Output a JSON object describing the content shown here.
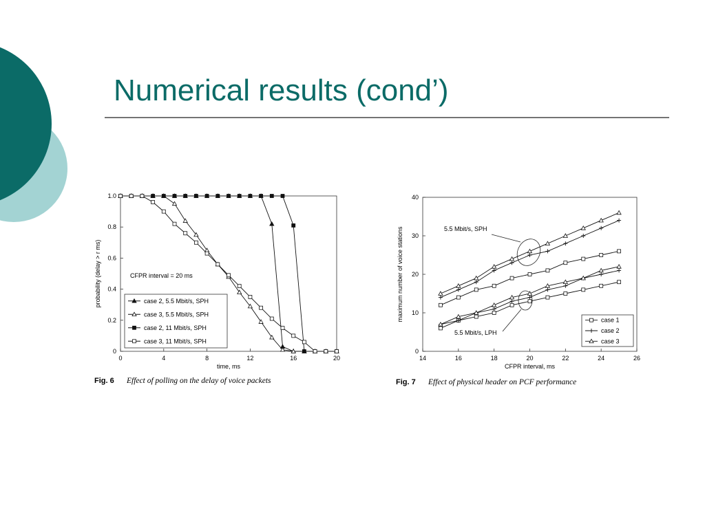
{
  "title": "Numerical results (cond’)",
  "chart_data": [
    {
      "type": "line",
      "xlabel": "time, ms",
      "ylabel": "probability (delay > r ms)",
      "annotation": "CFPR interval = 20 ms",
      "caption": {
        "label": "Fig. 6",
        "text": "Effect of polling on the delay of voice packets"
      },
      "x": [
        0,
        1,
        2,
        3,
        4,
        5,
        6,
        7,
        8,
        9,
        10,
        11,
        12,
        13,
        14,
        15,
        16,
        17,
        18,
        19,
        20
      ],
      "xlim": [
        0,
        20
      ],
      "xticks": [
        0,
        4,
        8,
        12,
        16,
        20
      ],
      "ylim": [
        0,
        1
      ],
      "yticks": [
        0,
        0.2,
        0.4,
        0.6,
        0.8,
        {
          "value": 1,
          "label": "1.0"
        }
      ],
      "legend": "lower left",
      "series": [
        {
          "name": "case 2, 5.5 Mbit/s, SPH",
          "color": "#111111",
          "marker": "triangle-filled",
          "values": [
            1,
            1,
            1,
            1,
            1,
            1,
            1,
            1,
            1,
            1,
            1,
            1,
            1,
            1,
            0.82,
            0.03,
            0,
            0,
            0,
            0,
            0
          ]
        },
        {
          "name": "case 3, 5.5 Mbit/s, SPH",
          "color": "#111111",
          "marker": "triangle",
          "values": [
            1,
            1,
            1,
            1,
            1,
            0.95,
            0.84,
            0.75,
            0.65,
            0.56,
            0.48,
            0.38,
            0.29,
            0.19,
            0.09,
            0.01,
            0,
            0,
            0,
            0,
            0
          ]
        },
        {
          "name": "case 2, 11 Mbit/s, SPH",
          "color": "#111111",
          "marker": "square-filled",
          "values": [
            1,
            1,
            1,
            1,
            1,
            1,
            1,
            1,
            1,
            1,
            1,
            1,
            1,
            1,
            1,
            1,
            0.81,
            0,
            0,
            0,
            0
          ]
        },
        {
          "name": "case 3, 11 Mbit/s, SPH",
          "color": "#111111",
          "marker": "square",
          "values": [
            1,
            1,
            1,
            0.96,
            0.9,
            0.82,
            0.76,
            0.7,
            0.63,
            0.56,
            0.49,
            0.42,
            0.35,
            0.28,
            0.21,
            0.15,
            0.1,
            0.06,
            0,
            0,
            0
          ]
        }
      ]
    },
    {
      "type": "line",
      "xlabel": "CFPR interval, ms",
      "ylabel": "maximum number of voice stations",
      "annotations": [
        "5.5 Mbit/s, SPH",
        "5.5 Mbit/s, LPH"
      ],
      "caption": {
        "label": "Fig. 7",
        "text": "Effect of physical header on PCF performance"
      },
      "x": [
        15,
        16,
        17,
        18,
        19,
        20,
        21,
        22,
        23,
        24,
        25
      ],
      "xlim": [
        14,
        26
      ],
      "xticks": [
        14,
        16,
        18,
        20,
        22,
        24,
        26
      ],
      "ylim": [
        0,
        40
      ],
      "yticks": [
        0,
        10,
        20,
        30,
        40
      ],
      "legend": "lower right",
      "series": [
        {
          "name": "case 1",
          "color": "#111111",
          "marker": "square",
          "values": [
            12,
            14,
            16,
            17,
            19,
            20,
            21,
            23,
            24,
            25,
            26
          ],
          "values_lph": [
            6,
            8,
            9,
            10,
            12,
            13,
            14,
            15,
            16,
            17,
            18
          ]
        },
        {
          "name": "case 2",
          "color": "#111111",
          "marker": "plus",
          "values": [
            14,
            16,
            18,
            21,
            23,
            25,
            26,
            28,
            30,
            32,
            34
          ],
          "values_lph": [
            7,
            8,
            10,
            11,
            13,
            14,
            16,
            17,
            19,
            20,
            21
          ]
        },
        {
          "name": "case 3",
          "color": "#111111",
          "marker": "triangle",
          "values": [
            15,
            17,
            19,
            22,
            24,
            26,
            28,
            30,
            32,
            34,
            36
          ],
          "values_lph": [
            7,
            9,
            10,
            12,
            14,
            15,
            17,
            18,
            19,
            21,
            22
          ]
        }
      ]
    }
  ]
}
